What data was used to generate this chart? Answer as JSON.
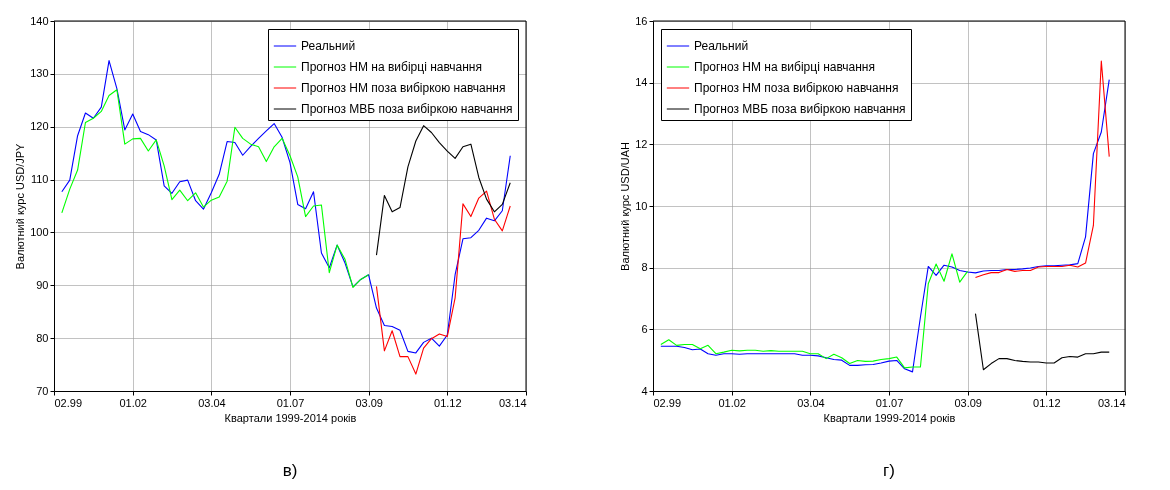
{
  "chart_data": [
    {
      "type": "line",
      "xlabel": "Квартали 1999-2014 років",
      "ylabel": "Валютний курс USD/JPY",
      "annotations": [
        "в)"
      ],
      "x": [
        "1999-10-01",
        "2000-01-01",
        "2000-04-01",
        "2000-07-01",
        "2000-10-01",
        "2001-01-01",
        "2001-04-01",
        "2001-07-01",
        "2001-10-01",
        "2002-01-01",
        "2002-04-01",
        "2002-07-01",
        "2002-10-01",
        "2003-01-01",
        "2003-04-01",
        "2003-07-01",
        "2003-10-01",
        "2004-01-01",
        "2004-04-01",
        "2004-07-01",
        "2004-10-01",
        "2005-01-01",
        "2005-04-01",
        "2005-07-01",
        "2005-10-01",
        "2006-01-01",
        "2006-04-01",
        "2006-07-01",
        "2006-10-01",
        "2007-01-01",
        "2007-04-01",
        "2007-07-01",
        "2007-10-01",
        "2008-01-01",
        "2008-04-01",
        "2008-07-01",
        "2008-10-01",
        "2009-01-01",
        "2009-04-01",
        "2009-07-01",
        "2009-10-01",
        "2010-01-01",
        "2010-04-01",
        "2010-07-01",
        "2010-10-01",
        "2011-01-01",
        "2011-04-01",
        "2011-07-01",
        "2011-10-01",
        "2012-01-01",
        "2012-04-01",
        "2012-07-01",
        "2012-10-01",
        "2013-01-01",
        "2013-04-01",
        "2013-07-01",
        "2013-10-01",
        "2014-01-01"
      ],
      "xlim": [
        "1999-07-02",
        "2014-07-03"
      ],
      "xticks": [
        {
          "value": "1999-07-02",
          "label": "02.99"
        },
        {
          "value": "2002-01-01",
          "label": "01.02"
        },
        {
          "value": "2004-07-03",
          "label": "03.04"
        },
        {
          "value": "2007-01-01",
          "label": "01.07"
        },
        {
          "value": "2009-07-03",
          "label": "03.09"
        },
        {
          "value": "2012-01-01",
          "label": "01.12"
        },
        {
          "value": "2014-07-03",
          "label": "03.14"
        }
      ],
      "ylim": [
        70,
        140
      ],
      "yticks": [
        70,
        80,
        90,
        100,
        110,
        120,
        130,
        140
      ],
      "grid": true,
      "legend": "top right",
      "marker": "none",
      "line_style": "solid",
      "series": [
        {
          "name": "Реальний",
          "color": "#0000ff",
          "values": [
            107.7,
            109.9,
            118.3,
            122.6,
            121.6,
            123.7,
            132.5,
            127.2,
            119.4,
            122.4,
            119.1,
            118.5,
            117.5,
            108.8,
            107.4,
            109.6,
            109.9,
            106.0,
            104.4,
            107.5,
            111.0,
            117.2,
            117.0,
            114.6,
            116.3,
            117.8,
            119.2,
            120.6,
            118.0,
            113.2,
            105.3,
            104.5,
            107.7,
            96.1,
            93.3,
            97.6,
            94.2,
            89.7,
            91.1,
            92.0,
            85.7,
            82.4,
            82.2,
            81.5,
            77.5,
            77.2,
            79.2,
            80.0,
            78.5,
            80.6,
            92.0,
            98.8,
            99.0,
            100.4,
            102.7,
            102.2,
            104.1,
            114.5
          ]
        },
        {
          "name": "Прогноз НМ на вибірці навчання",
          "color": "#00ff00",
          "values": [
            103.7,
            108.2,
            111.8,
            120.8,
            121.6,
            122.9,
            125.9,
            127.0,
            116.7,
            117.7,
            117.8,
            115.4,
            117.5,
            112.6,
            106.2,
            108.0,
            106.0,
            107.5,
            104.8,
            106.1,
            106.7,
            109.7,
            119.9,
            117.8,
            116.7,
            116.2,
            113.4,
            116.2,
            117.8,
            114.5,
            110.5,
            103.0,
            105.0,
            105.2,
            92.4,
            97.6,
            94.9,
            89.6,
            91.1,
            92.0,
            null,
            null,
            null,
            null,
            null,
            null,
            null,
            null,
            null,
            null,
            null,
            null,
            null,
            null,
            null,
            null,
            null,
            null
          ]
        },
        {
          "name": "Прогноз НМ поза вибіркою навчання",
          "color": "#ff0000",
          "values": [
            null,
            null,
            null,
            null,
            null,
            null,
            null,
            null,
            null,
            null,
            null,
            null,
            null,
            null,
            null,
            null,
            null,
            null,
            null,
            null,
            null,
            null,
            null,
            null,
            null,
            null,
            null,
            null,
            null,
            null,
            null,
            null,
            null,
            null,
            null,
            null,
            null,
            null,
            null,
            null,
            89.8,
            77.6,
            81.4,
            76.5,
            76.5,
            73.2,
            78.1,
            79.9,
            80.8,
            80.3,
            87.6,
            105.4,
            103.0,
            106.5,
            107.8,
            102.5,
            100.3,
            105.0
          ]
        },
        {
          "name": "Прогноз МВБ поза вибіркою навчання",
          "color": "#000000",
          "values": [
            null,
            null,
            null,
            null,
            null,
            null,
            null,
            null,
            null,
            null,
            null,
            null,
            null,
            null,
            null,
            null,
            null,
            null,
            null,
            null,
            null,
            null,
            null,
            null,
            null,
            null,
            null,
            null,
            null,
            null,
            null,
            null,
            null,
            null,
            null,
            null,
            null,
            null,
            null,
            null,
            95.7,
            107.0,
            103.9,
            104.7,
            112.4,
            117.3,
            120.2,
            118.9,
            117.0,
            115.4,
            114.0,
            116.2,
            116.7,
            110.4,
            106.3,
            103.9,
            105.3,
            109.4
          ]
        }
      ]
    },
    {
      "type": "line",
      "xlabel": "Квартали 1999-2014 років",
      "ylabel": "Валютний курс USD/UAH",
      "annotations": [
        "г)"
      ],
      "x": [
        "1999-10-01",
        "2000-01-01",
        "2000-04-01",
        "2000-07-01",
        "2000-10-01",
        "2001-01-01",
        "2001-04-01",
        "2001-07-01",
        "2001-10-01",
        "2002-01-01",
        "2002-04-01",
        "2002-07-01",
        "2002-10-01",
        "2003-01-01",
        "2003-04-01",
        "2003-07-01",
        "2003-10-01",
        "2004-01-01",
        "2004-04-01",
        "2004-07-01",
        "2004-10-01",
        "2005-01-01",
        "2005-04-01",
        "2005-07-01",
        "2005-10-01",
        "2006-01-01",
        "2006-04-01",
        "2006-07-01",
        "2006-10-01",
        "2007-01-01",
        "2007-04-01",
        "2007-07-01",
        "2007-10-01",
        "2008-01-01",
        "2008-04-01",
        "2008-07-01",
        "2008-10-01",
        "2009-01-01",
        "2009-04-01",
        "2009-07-01",
        "2009-10-01",
        "2010-01-01",
        "2010-04-01",
        "2010-07-01",
        "2010-10-01",
        "2011-01-01",
        "2011-04-01",
        "2011-07-01",
        "2011-10-01",
        "2012-01-01",
        "2012-04-01",
        "2012-07-01",
        "2012-10-01",
        "2013-01-01",
        "2013-04-01",
        "2013-07-01",
        "2013-10-01",
        "2014-01-01"
      ],
      "xlim": [
        "1999-07-02",
        "2014-07-03"
      ],
      "xticks": [
        {
          "value": "1999-07-02",
          "label": "02.99"
        },
        {
          "value": "2002-01-01",
          "label": "01.02"
        },
        {
          "value": "2004-07-03",
          "label": "03.04"
        },
        {
          "value": "2007-01-01",
          "label": "01.07"
        },
        {
          "value": "2009-07-03",
          "label": "03.09"
        },
        {
          "value": "2012-01-01",
          "label": "01.12"
        },
        {
          "value": "2014-07-03",
          "label": "03.14"
        }
      ],
      "ylim": [
        4,
        16
      ],
      "yticks": [
        4,
        6,
        8,
        10,
        12,
        14,
        16
      ],
      "grid": true,
      "legend": "top left",
      "marker": "none",
      "line_style": "solid",
      "series": [
        {
          "name": "Реальний",
          "color": "#0000ff",
          "values": [
            5.45,
            5.45,
            5.45,
            5.41,
            5.34,
            5.36,
            5.21,
            5.16,
            5.21,
            5.21,
            5.19,
            5.21,
            5.21,
            5.21,
            5.21,
            5.21,
            5.21,
            5.21,
            5.16,
            5.16,
            5.14,
            5.08,
            5.02,
            5.0,
            4.83,
            4.83,
            4.85,
            4.86,
            4.91,
            4.97,
            4.99,
            4.72,
            4.62,
            6.4,
            8.04,
            7.75,
            8.08,
            8.02,
            7.91,
            7.86,
            7.83,
            7.89,
            7.91,
            7.91,
            7.94,
            7.94,
            7.96,
            7.99,
            8.04,
            8.06,
            8.06,
            8.08,
            8.09,
            8.13,
            9.0,
            11.7,
            12.4,
            14.1
          ]
        },
        {
          "name": "Прогноз НМ на вибірці навчання",
          "color": "#00ff00",
          "values": [
            5.51,
            5.66,
            5.48,
            5.51,
            5.51,
            5.37,
            5.48,
            5.21,
            5.26,
            5.32,
            5.3,
            5.32,
            5.32,
            5.29,
            5.31,
            5.29,
            5.29,
            5.29,
            5.29,
            5.21,
            5.21,
            5.05,
            5.19,
            5.08,
            4.89,
            4.99,
            4.96,
            4.97,
            5.02,
            5.05,
            5.1,
            4.75,
            4.78,
            4.78,
            7.48,
            8.12,
            7.56,
            8.45,
            7.53,
            7.88,
            null,
            null,
            null,
            null,
            null,
            null,
            null,
            null,
            null,
            null,
            null,
            null,
            null,
            null,
            null,
            null,
            null,
            null
          ]
        },
        {
          "name": "Прогноз НМ поза вибіркою навчання",
          "color": "#ff0000",
          "values": [
            null,
            null,
            null,
            null,
            null,
            null,
            null,
            null,
            null,
            null,
            null,
            null,
            null,
            null,
            null,
            null,
            null,
            null,
            null,
            null,
            null,
            null,
            null,
            null,
            null,
            null,
            null,
            null,
            null,
            null,
            null,
            null,
            null,
            null,
            null,
            null,
            null,
            null,
            null,
            null,
            7.68,
            7.77,
            7.84,
            7.84,
            7.94,
            7.88,
            7.91,
            7.91,
            8.02,
            8.04,
            8.04,
            8.04,
            8.08,
            8.02,
            8.15,
            9.37,
            14.7,
            11.6
          ]
        },
        {
          "name": "Прогноз МВБ поза вибіркою навчання",
          "color": "#000000",
          "values": [
            null,
            null,
            null,
            null,
            null,
            null,
            null,
            null,
            null,
            null,
            null,
            null,
            null,
            null,
            null,
            null,
            null,
            null,
            null,
            null,
            null,
            null,
            null,
            null,
            null,
            null,
            null,
            null,
            null,
            null,
            null,
            null,
            null,
            null,
            null,
            null,
            null,
            null,
            null,
            null,
            6.51,
            4.69,
            4.89,
            5.05,
            5.05,
            4.99,
            4.96,
            4.94,
            4.94,
            4.91,
            4.91,
            5.08,
            5.12,
            5.1,
            5.21,
            5.21,
            5.26,
            5.26
          ]
        }
      ]
    }
  ]
}
